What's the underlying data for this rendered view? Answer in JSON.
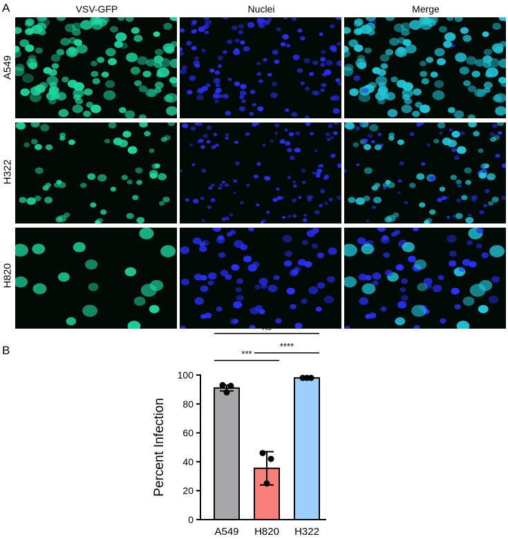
{
  "panel_a": {
    "letter": "A",
    "columns": [
      "VSV-GFP",
      "Nuclei",
      "Merge"
    ],
    "rows": [
      "A549",
      "H322",
      "H820"
    ]
  },
  "panel_b": {
    "letter": "B"
  },
  "colors": {
    "gfp": "#1fd6a0",
    "nuclei": "#2a32ff",
    "merge_cell": "#22c6d8",
    "bar_a549": "#a6a6ab",
    "bar_h820": "#f98079",
    "bar_h322": "#9ccefe"
  },
  "chart_data": {
    "type": "bar",
    "ylabel": "Percent Infection",
    "ylim": [
      0,
      100
    ],
    "yticks": [
      "0",
      "20",
      "40",
      "60",
      "80",
      "100"
    ],
    "categories": [
      "A549",
      "H820",
      "H322"
    ],
    "values": [
      91,
      35.5,
      98
    ],
    "errors": [
      2,
      11.5,
      0.5
    ],
    "points": [
      [
        93,
        92.5,
        88
      ],
      [
        46,
        42,
        25
      ],
      [
        98,
        98,
        98
      ]
    ],
    "bar_colors": [
      "#a6a6ab",
      "#f98079",
      "#9ccefe"
    ],
    "significance": [
      {
        "from": 0,
        "to": 2,
        "label": "ns"
      },
      {
        "from": 1,
        "to": 2,
        "label": "****"
      },
      {
        "from": 0,
        "to": 1,
        "label": "***"
      }
    ]
  }
}
